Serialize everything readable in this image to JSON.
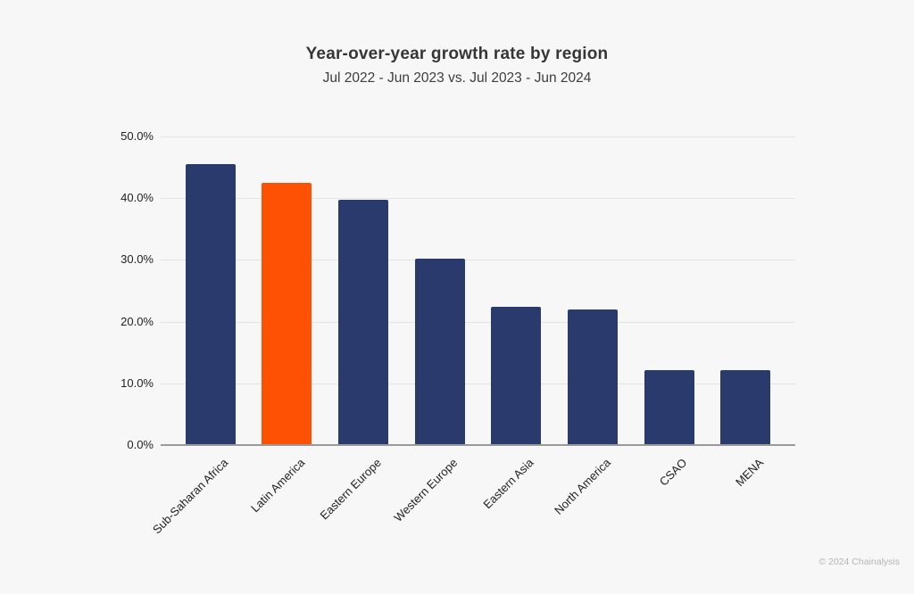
{
  "chart": {
    "title": "Year-over-year growth rate by region",
    "subtitle": "Jul 2022 - Jun 2023 vs. Jul 2023 - Jun 2024"
  },
  "chart_data": {
    "type": "bar",
    "title": "Year-over-year growth rate by region",
    "subtitle": "Jul 2022 - Jun 2023 vs. Jul 2023 - Jun 2024",
    "categories": [
      "Sub-Saharan Africa",
      "Latin America",
      "Eastern Europe",
      "Western Europe",
      "Eastern Asia",
      "North America",
      "CSAO",
      "MENA"
    ],
    "values": [
      45.5,
      42.5,
      39.7,
      30.2,
      22.4,
      21.9,
      12.1,
      12.1
    ],
    "xlabel": "",
    "ylabel": "",
    "ylim": [
      0,
      50
    ],
    "ytick_labels": [
      "0.0%",
      "10.0%",
      "20.0%",
      "30.0%",
      "40.0%",
      "50.0%"
    ],
    "grid": true,
    "legend": false,
    "bar_color": "#2b3a6d",
    "highlight_color": "#ff5104",
    "highlight_category": "Latin America",
    "background_color": "#f7f7f7"
  },
  "footer": {
    "copyright": "© 2024 Chainalysis"
  }
}
